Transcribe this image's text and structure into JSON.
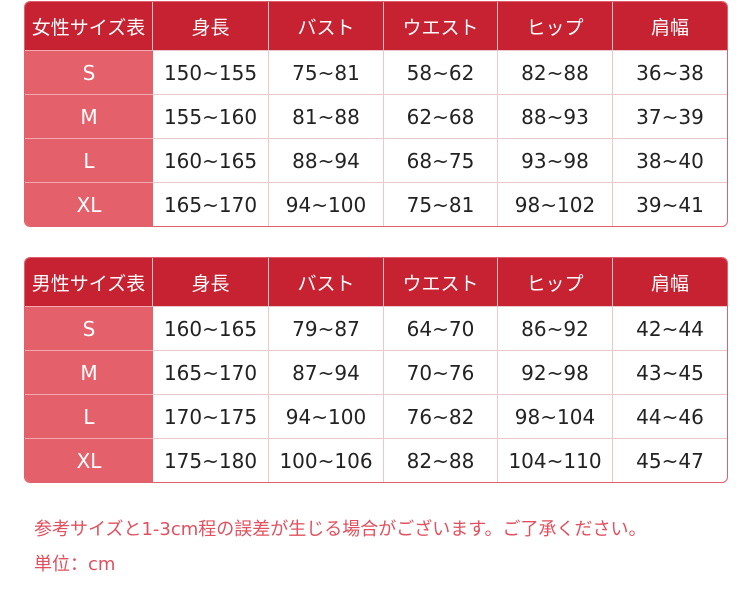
{
  "women_table": {
    "headers": [
      "女性サイズ表",
      "身長",
      "バスト",
      "ウエスト",
      "ヒップ",
      "肩幅"
    ],
    "rows": [
      [
        "S",
        "150~155",
        "75~81",
        "58~62",
        "82~88",
        "36~38"
      ],
      [
        "M",
        "155~160",
        "81~88",
        "62~68",
        "88~93",
        "37~39"
      ],
      [
        "L",
        "160~165",
        "88~94",
        "68~75",
        "93~98",
        "38~40"
      ],
      [
        "XL",
        "165~170",
        "94~100",
        "75~81",
        "98~102",
        "39~41"
      ]
    ]
  },
  "men_table": {
    "headers": [
      "男性サイズ表",
      "身長",
      "バスト",
      "ウエスト",
      "ヒップ",
      "肩幅"
    ],
    "rows": [
      [
        "S",
        "160~165",
        "79~87",
        "64~70",
        "86~92",
        "42~44"
      ],
      [
        "M",
        "165~170",
        "87~94",
        "70~76",
        "92~98",
        "43~45"
      ],
      [
        "L",
        "170~175",
        "94~100",
        "76~82",
        "98~104",
        "44~46"
      ],
      [
        "XL",
        "175~180",
        "100~106",
        "82~88",
        "104~110",
        "45~47"
      ]
    ]
  },
  "notes": {
    "disclaimer": "参考サイズと1-3cm程の誤差が生じる場合がございます。ご了承ください。",
    "unit": "単位：cm"
  },
  "colors": {
    "header": "#c72232",
    "size_column": "#e4616c",
    "note_text": "#e0505e"
  }
}
